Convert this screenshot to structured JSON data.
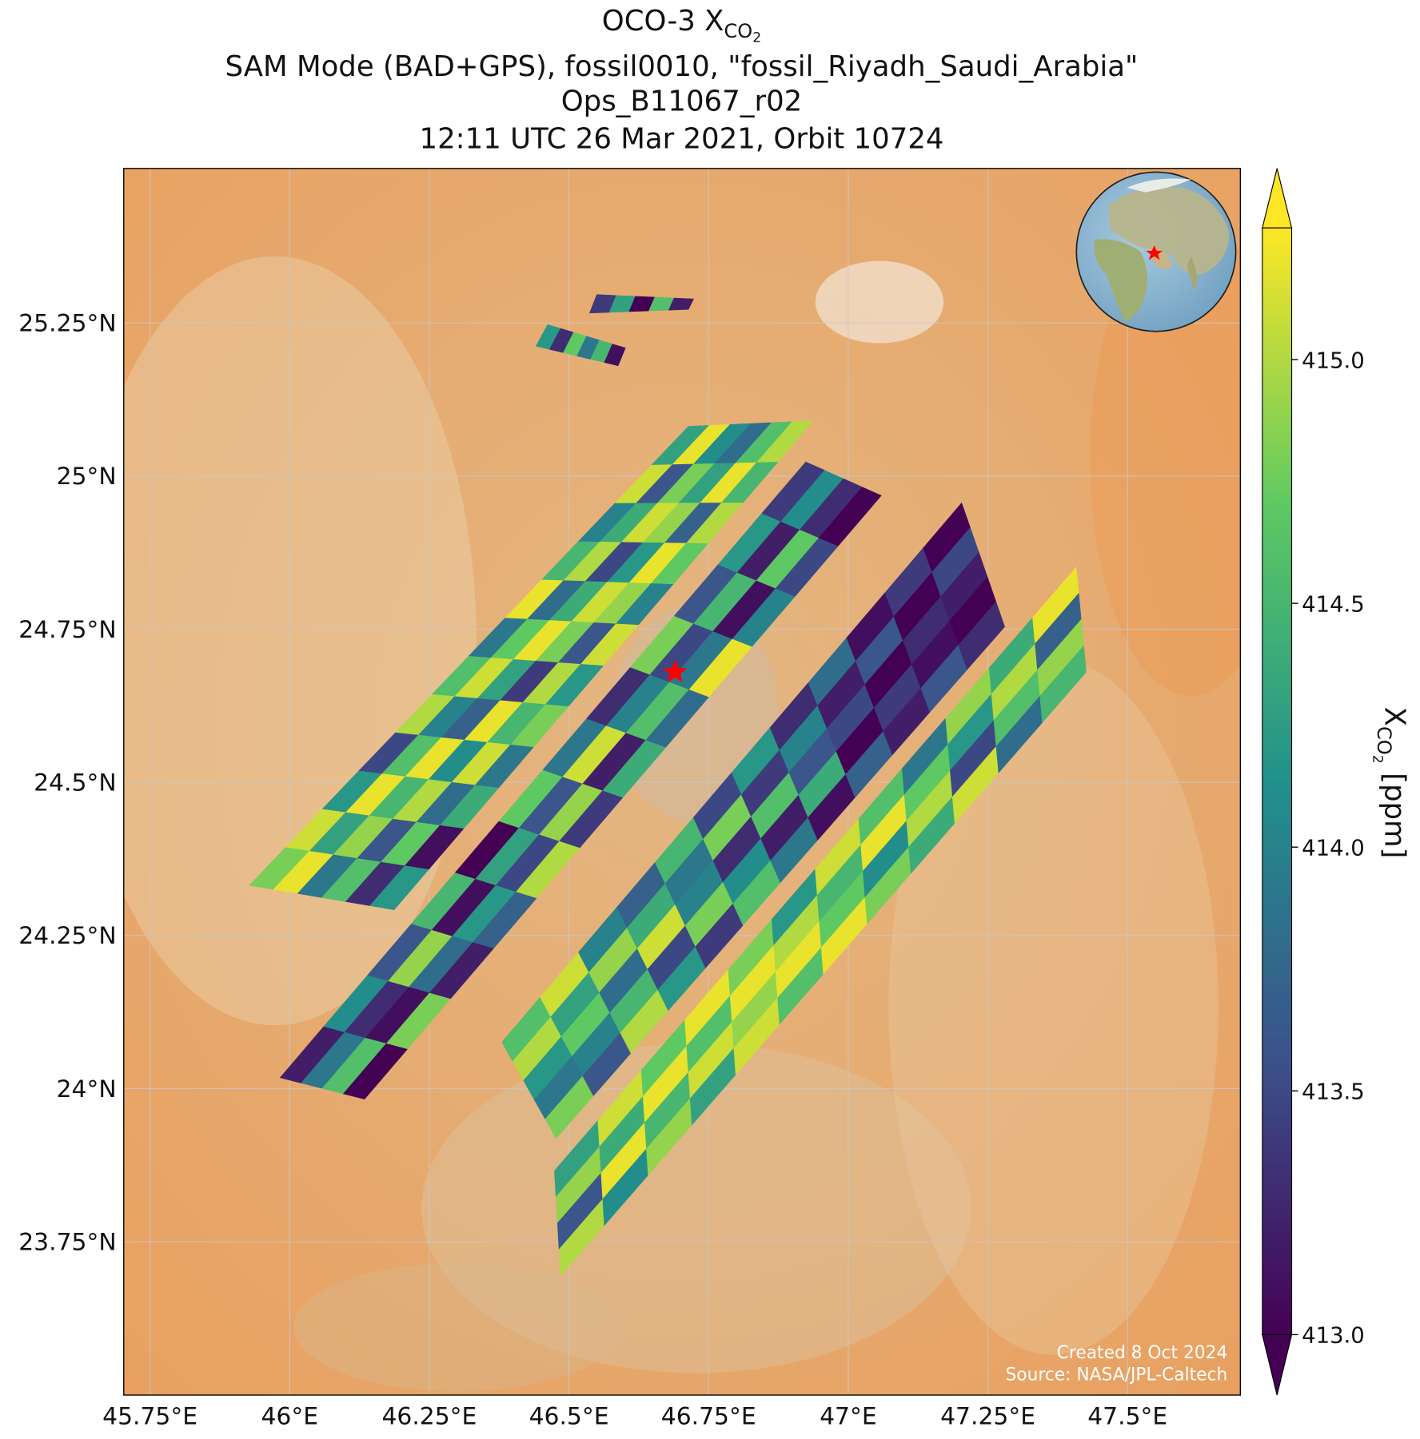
{
  "chart_data": {
    "type": "swath-map",
    "title": {
      "text": "OCO-3 X",
      "sub": "CO",
      "subsub": "2"
    },
    "subtitles": [
      "SAM Mode (BAD+GPS), fossil0010, \"fossil_Riyadh_Saudi_Arabia\"",
      "Ops_B11067_r02",
      "12:11 UTC 26 Mar 2021, Orbit 10724"
    ],
    "xlim": [
      45.703,
      47.702
    ],
    "ylim": [
      23.5,
      25.502
    ],
    "xticks": [
      {
        "value": 45.75,
        "label": "45.75°E"
      },
      {
        "value": 46,
        "label": "46°E"
      },
      {
        "value": 46.25,
        "label": "46.25°E"
      },
      {
        "value": 46.5,
        "label": "46.5°E"
      },
      {
        "value": 46.75,
        "label": "46.75°E"
      },
      {
        "value": 47,
        "label": "47°E"
      },
      {
        "value": 47.25,
        "label": "47.25°E"
      },
      {
        "value": 47.5,
        "label": "47.5°E"
      }
    ],
    "yticks": [
      {
        "value": 23.75,
        "label": "23.75°N"
      },
      {
        "value": 24,
        "label": "24°N"
      },
      {
        "value": 24.25,
        "label": "24.25°N"
      },
      {
        "value": 24.5,
        "label": "24.5°N"
      },
      {
        "value": 24.75,
        "label": "24.75°N"
      },
      {
        "value": 25,
        "label": "25°N"
      },
      {
        "value": 25.25,
        "label": "25.25°N"
      }
    ],
    "grid": true,
    "colormap": "viridis",
    "clim": [
      413,
      415.27
    ],
    "colorbar_ticks": [
      {
        "value": 413,
        "label": "413.0"
      },
      {
        "value": 413.5,
        "label": "413.5"
      },
      {
        "value": 414,
        "label": "414.0"
      },
      {
        "value": 414.5,
        "label": "414.5"
      },
      {
        "value": 415,
        "label": "415.0"
      }
    ],
    "colorbar_label": {
      "text": "X",
      "sub": "CO",
      "subsub": "2",
      "unit": "[ppm]"
    },
    "target": {
      "lon": 46.69,
      "lat": 24.68,
      "color": "#ff0000"
    },
    "swaths": [
      {
        "lon": [
          45.928,
          46.187,
          46.937,
          46.714
        ],
        "lat": [
          24.332,
          24.292,
          25.09,
          25.081
        ],
        "values": [
          [
            414.8,
            415.2,
            413.9,
            414.6,
            413.3,
            414.2
          ],
          [
            415.1,
            414.3,
            414.9,
            413.6,
            414.7,
            413.1
          ],
          [
            414.2,
            415.2,
            414.5,
            415.0,
            413.8,
            414.4
          ],
          [
            413.5,
            414.6,
            415.2,
            414.1,
            415.1,
            413.9
          ],
          [
            415.0,
            414.0,
            413.7,
            415.2,
            414.5,
            414.8
          ],
          [
            414.6,
            415.1,
            414.3,
            413.4,
            415.0,
            414.2
          ],
          [
            413.9,
            414.7,
            415.2,
            414.8,
            413.6,
            415.1
          ],
          [
            415.2,
            413.8,
            414.4,
            415.1,
            414.9,
            414.0
          ],
          [
            414.5,
            415.0,
            413.5,
            414.2,
            415.2,
            414.7
          ],
          [
            414.0,
            414.4,
            415.1,
            414.9,
            413.7,
            415.0
          ],
          [
            415.1,
            413.6,
            414.8,
            414.3,
            415.2,
            414.5
          ],
          [
            414.3,
            415.2,
            414.1,
            413.8,
            414.6,
            415.0
          ]
        ]
      },
      {
        "lon": [
          45.983,
          46.134,
          47.059,
          46.924
        ],
        "lat": [
          24.018,
          23.983,
          24.968,
          25.023
        ],
        "values": [
          [
            413.2,
            413.9,
            414.6,
            413.0
          ],
          [
            414.1,
            413.3,
            413.1,
            414.8
          ],
          [
            413.6,
            414.9,
            413.8,
            413.2
          ],
          [
            414.5,
            413.1,
            414.2,
            413.7
          ],
          [
            413.0,
            414.3,
            413.5,
            415.0
          ],
          [
            414.7,
            413.6,
            414.9,
            413.4
          ],
          [
            413.9,
            415.1,
            413.2,
            414.4
          ],
          [
            413.3,
            414.0,
            414.6,
            413.8
          ],
          [
            414.8,
            413.5,
            413.9,
            415.2
          ],
          [
            413.6,
            414.5,
            413.1,
            414.0
          ],
          [
            414.2,
            413.2,
            414.7,
            413.5
          ],
          [
            413.4,
            414.1,
            413.3,
            413.0
          ]
        ]
      },
      {
        "lon": [
          46.38,
          46.477,
          47.28,
          47.203
        ],
        "lat": [
          24.076,
          23.919,
          24.754,
          24.956
        ],
        "values": [
          [
            414.6,
            415.0,
            414.2,
            413.9,
            414.8
          ],
          [
            415.1,
            414.3,
            414.7,
            414.0,
            413.6
          ],
          [
            414.0,
            414.9,
            413.8,
            414.5,
            415.0
          ],
          [
            413.7,
            414.4,
            415.1,
            413.5,
            414.2
          ],
          [
            414.5,
            413.9,
            414.0,
            414.8,
            413.4
          ],
          [
            413.5,
            414.8,
            413.3,
            414.1,
            414.6
          ],
          [
            414.2,
            413.4,
            414.6,
            413.2,
            413.9
          ],
          [
            413.3,
            414.0,
            413.6,
            414.4,
            413.1
          ],
          [
            413.8,
            413.2,
            413.5,
            413.0,
            413.7
          ],
          [
            413.1,
            413.6,
            413.0,
            413.4,
            413.2
          ],
          [
            413.4,
            413.0,
            413.3,
            413.1,
            413.6
          ],
          [
            413.0,
            413.5,
            413.2,
            413.0,
            413.3
          ]
        ]
      },
      {
        "lon": [
          46.474,
          46.485,
          47.426,
          47.408
        ],
        "lat": [
          23.866,
          23.695,
          24.68,
          24.851
        ],
        "values": [
          [
            414.3,
            414.9,
            413.6,
            415.0
          ],
          [
            415.1,
            414.4,
            415.2,
            414.1
          ],
          [
            414.7,
            415.2,
            414.5,
            414.9
          ],
          [
            415.2,
            414.6,
            415.1,
            414.3
          ],
          [
            414.8,
            415.2,
            414.9,
            415.1
          ],
          [
            414.2,
            415.0,
            415.2,
            414.6
          ],
          [
            415.1,
            414.5,
            414.7,
            415.2
          ],
          [
            414.6,
            415.2,
            414.1,
            414.8
          ],
          [
            413.9,
            414.7,
            415.0,
            414.4
          ],
          [
            414.9,
            414.2,
            413.5,
            415.1
          ],
          [
            414.4,
            415.0,
            414.6,
            413.8
          ],
          [
            415.2,
            413.7,
            414.9,
            414.5
          ]
        ]
      },
      {
        "lon": [
          46.462,
          46.441,
          46.588,
          46.601
        ],
        "lat": [
          25.247,
          25.212,
          25.18,
          25.209
        ],
        "values": [
          [
            414.2
          ],
          [
            413.3
          ],
          [
            414.7
          ],
          [
            413.9
          ],
          [
            414.5
          ],
          [
            413.1
          ]
        ]
      },
      {
        "lon": [
          46.55,
          46.537,
          46.714,
          46.723
        ],
        "lat": [
          25.296,
          25.266,
          25.272,
          25.289
        ],
        "values": [
          [
            413.4
          ],
          [
            414.3
          ],
          [
            413.0
          ],
          [
            414.6
          ],
          [
            413.2
          ]
        ]
      }
    ],
    "credits": [
      "Created 8 Oct 2024",
      "Source: NASA/JPL-Caltech"
    ]
  }
}
